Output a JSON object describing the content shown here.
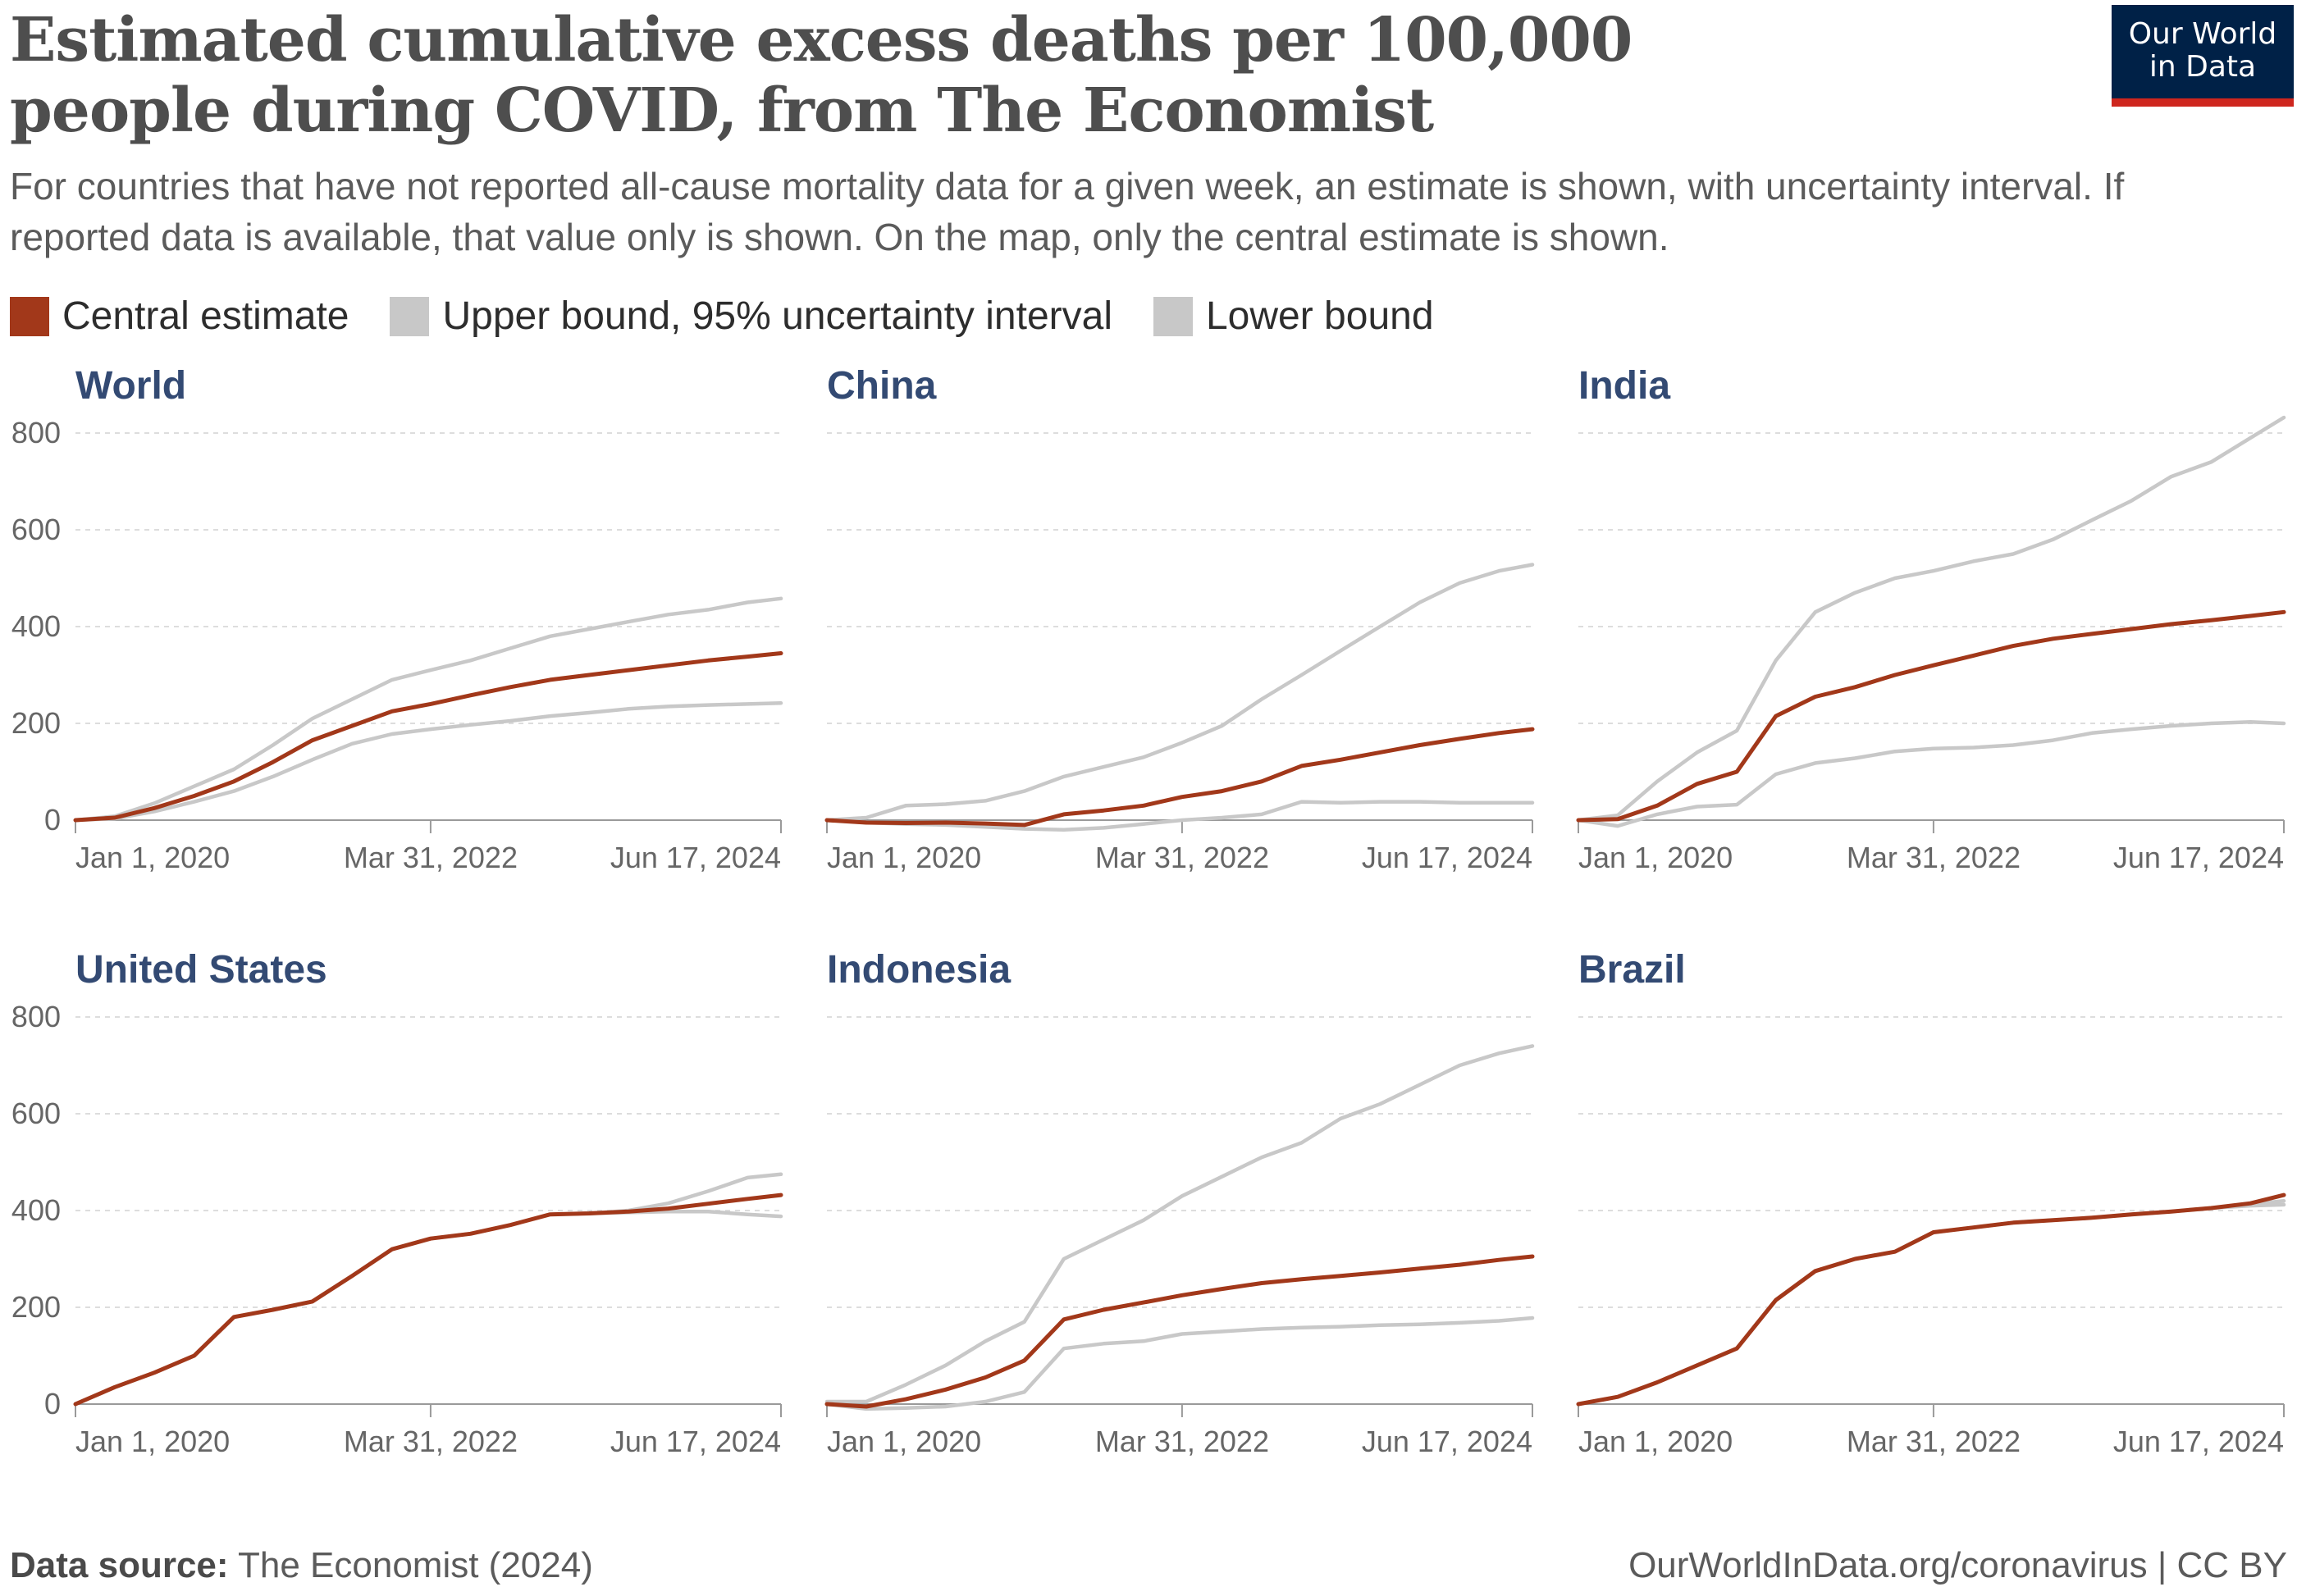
{
  "title": "Estimated cumulative excess deaths per 100,000 people during COVID, from The Economist",
  "subtitle": "For countries that have not reported all-cause mortality data for a given week, an estimate is shown, with uncertainty interval. If reported data is available, that value only is shown. On the map, only the central estimate is shown.",
  "logo": {
    "line1": "Our World",
    "line2": "in Data"
  },
  "legend": [
    {
      "label": "Central estimate",
      "color": "#a2381a"
    },
    {
      "label": "Upper bound, 95% uncertainty interval",
      "color": "#c8c8c8"
    },
    {
      "label": "Lower bound",
      "color": "#c8c8c8"
    }
  ],
  "footer": {
    "source_label": "Data source:",
    "source_text": "The Economist (2024)",
    "credit": "OurWorldInData.org/coronavirus | CC BY"
  },
  "colors": {
    "central": "#a2381a",
    "bounds": "#c8c8c8",
    "grid": "#dddddd",
    "title": "#334a73"
  },
  "chart_data": [
    {
      "type": "line",
      "title": "World",
      "x_ticks": [
        "Jan 1, 2020",
        "Mar 31, 2022",
        "Jun 17, 2024"
      ],
      "ylim": [
        0,
        800
      ],
      "y_ticks": [
        0,
        200,
        400,
        600,
        800
      ],
      "x": [
        "2020-01-01",
        "2020-04-01",
        "2020-07-01",
        "2020-10-01",
        "2021-01-01",
        "2021-04-01",
        "2021-07-01",
        "2021-10-01",
        "2022-01-01",
        "2022-03-31",
        "2022-07-01",
        "2022-10-01",
        "2023-01-01",
        "2023-04-01",
        "2023-07-01",
        "2023-10-01",
        "2024-01-01",
        "2024-04-01",
        "2024-06-17"
      ],
      "series": [
        {
          "name": "Central estimate",
          "values": [
            0,
            5,
            25,
            50,
            80,
            120,
            165,
            195,
            225,
            240,
            258,
            275,
            290,
            300,
            310,
            320,
            330,
            338,
            345
          ]
        },
        {
          "name": "Upper bound, 95% uncertainty interval",
          "values": [
            0,
            8,
            35,
            70,
            105,
            155,
            210,
            250,
            290,
            310,
            330,
            355,
            380,
            395,
            410,
            425,
            435,
            450,
            458
          ]
        },
        {
          "name": "Lower bound",
          "values": [
            0,
            3,
            18,
            38,
            60,
            90,
            125,
            158,
            178,
            188,
            197,
            205,
            215,
            222,
            230,
            235,
            238,
            240,
            242
          ]
        }
      ]
    },
    {
      "type": "line",
      "title": "China",
      "x_ticks": [
        "Jan 1, 2020",
        "Mar 31, 2022",
        "Jun 17, 2024"
      ],
      "ylim": [
        0,
        800
      ],
      "y_ticks": [
        0,
        200,
        400,
        600,
        800
      ],
      "x": [
        "2020-01-01",
        "2020-04-01",
        "2020-07-01",
        "2020-10-01",
        "2021-01-01",
        "2021-04-01",
        "2021-07-01",
        "2021-10-01",
        "2022-01-01",
        "2022-03-31",
        "2022-07-01",
        "2022-10-01",
        "2023-01-01",
        "2023-04-01",
        "2023-07-01",
        "2023-10-01",
        "2024-01-01",
        "2024-04-01",
        "2024-06-17"
      ],
      "series": [
        {
          "name": "Central estimate",
          "values": [
            0,
            -5,
            -6,
            -5,
            -7,
            -10,
            12,
            20,
            30,
            48,
            60,
            80,
            112,
            125,
            140,
            155,
            168,
            180,
            188
          ]
        },
        {
          "name": "Upper bound, 95% uncertainty interval",
          "values": [
            0,
            5,
            30,
            33,
            40,
            60,
            90,
            110,
            130,
            160,
            195,
            250,
            300,
            350,
            400,
            450,
            490,
            515,
            528
          ]
        },
        {
          "name": "Lower bound",
          "values": [
            0,
            -5,
            -8,
            -10,
            -14,
            -18,
            -20,
            -16,
            -8,
            0,
            5,
            12,
            38,
            36,
            38,
            38,
            36,
            36,
            36
          ]
        }
      ]
    },
    {
      "type": "line",
      "title": "India",
      "x_ticks": [
        "Jan 1, 2020",
        "Mar 31, 2022",
        "Jun 17, 2024"
      ],
      "ylim": [
        0,
        800
      ],
      "y_ticks": [
        0,
        200,
        400,
        600,
        800
      ],
      "x": [
        "2020-01-01",
        "2020-04-01",
        "2020-07-01",
        "2020-10-01",
        "2021-01-01",
        "2021-04-01",
        "2021-07-01",
        "2021-10-01",
        "2022-01-01",
        "2022-03-31",
        "2022-07-01",
        "2022-10-01",
        "2023-01-01",
        "2023-04-01",
        "2023-07-01",
        "2023-10-01",
        "2024-01-01",
        "2024-04-01",
        "2024-06-17"
      ],
      "series": [
        {
          "name": "Central estimate",
          "values": [
            0,
            2,
            30,
            75,
            100,
            215,
            255,
            275,
            300,
            320,
            340,
            360,
            375,
            385,
            395,
            405,
            413,
            422,
            430
          ]
        },
        {
          "name": "Upper bound, 95% uncertainty interval",
          "values": [
            0,
            10,
            80,
            140,
            185,
            330,
            430,
            470,
            500,
            515,
            535,
            550,
            580,
            620,
            660,
            710,
            740,
            790,
            832
          ]
        },
        {
          "name": "Lower bound",
          "values": [
            0,
            -12,
            12,
            28,
            32,
            95,
            118,
            128,
            142,
            148,
            150,
            155,
            165,
            180,
            188,
            195,
            200,
            203,
            200
          ]
        }
      ]
    },
    {
      "type": "line",
      "title": "United States",
      "x_ticks": [
        "Jan 1, 2020",
        "Mar 31, 2022",
        "Jun 17, 2024"
      ],
      "ylim": [
        0,
        800
      ],
      "y_ticks": [
        0,
        200,
        400,
        600,
        800
      ],
      "x": [
        "2020-01-01",
        "2020-04-01",
        "2020-07-01",
        "2020-10-01",
        "2021-01-01",
        "2021-04-01",
        "2021-07-01",
        "2021-10-01",
        "2022-01-01",
        "2022-03-31",
        "2022-07-01",
        "2022-10-01",
        "2023-01-01",
        "2023-04-01",
        "2023-07-01",
        "2023-10-01",
        "2024-01-01",
        "2024-04-01",
        "2024-06-17"
      ],
      "series": [
        {
          "name": "Central estimate",
          "values": [
            0,
            35,
            65,
            100,
            180,
            195,
            212,
            265,
            320,
            342,
            352,
            370,
            392,
            394,
            398,
            404,
            414,
            424,
            432
          ]
        },
        {
          "name": "Upper bound, 95% uncertainty interval",
          "values": [
            0,
            35,
            65,
            100,
            180,
            195,
            212,
            265,
            320,
            342,
            352,
            370,
            392,
            394,
            400,
            415,
            440,
            468,
            475
          ]
        },
        {
          "name": "Lower bound",
          "values": [
            0,
            35,
            65,
            100,
            180,
            195,
            212,
            265,
            320,
            342,
            352,
            370,
            392,
            394,
            396,
            398,
            398,
            392,
            388
          ]
        }
      ]
    },
    {
      "type": "line",
      "title": "Indonesia",
      "x_ticks": [
        "Jan 1, 2020",
        "Mar 31, 2022",
        "Jun 17, 2024"
      ],
      "ylim": [
        0,
        800
      ],
      "y_ticks": [
        0,
        200,
        400,
        600,
        800
      ],
      "x": [
        "2020-01-01",
        "2020-04-01",
        "2020-07-01",
        "2020-10-01",
        "2021-01-01",
        "2021-04-01",
        "2021-07-01",
        "2021-10-01",
        "2022-01-01",
        "2022-03-31",
        "2022-07-01",
        "2022-10-01",
        "2023-01-01",
        "2023-04-01",
        "2023-07-01",
        "2023-10-01",
        "2024-01-01",
        "2024-04-01",
        "2024-06-17"
      ],
      "series": [
        {
          "name": "Central estimate",
          "values": [
            0,
            -5,
            10,
            30,
            55,
            90,
            175,
            195,
            210,
            225,
            238,
            250,
            258,
            265,
            272,
            280,
            288,
            298,
            305
          ]
        },
        {
          "name": "Upper bound, 95% uncertainty interval",
          "values": [
            5,
            5,
            40,
            80,
            130,
            170,
            300,
            340,
            380,
            430,
            470,
            510,
            540,
            590,
            620,
            660,
            700,
            725,
            740
          ]
        },
        {
          "name": "Lower bound",
          "values": [
            0,
            -10,
            -8,
            -5,
            5,
            25,
            115,
            125,
            130,
            145,
            150,
            155,
            158,
            160,
            163,
            165,
            168,
            172,
            178
          ]
        }
      ]
    },
    {
      "type": "line",
      "title": "Brazil",
      "x_ticks": [
        "Jan 1, 2020",
        "Mar 31, 2022",
        "Jun 17, 2024"
      ],
      "ylim": [
        0,
        800
      ],
      "y_ticks": [
        0,
        200,
        400,
        600,
        800
      ],
      "x": [
        "2020-01-01",
        "2020-04-01",
        "2020-07-01",
        "2020-10-01",
        "2021-01-01",
        "2021-04-01",
        "2021-07-01",
        "2021-10-01",
        "2022-01-01",
        "2022-03-31",
        "2022-07-01",
        "2022-10-01",
        "2023-01-01",
        "2023-04-01",
        "2023-07-01",
        "2023-10-01",
        "2024-01-01",
        "2024-04-01",
        "2024-06-17"
      ],
      "series": [
        {
          "name": "Central estimate",
          "values": [
            0,
            15,
            45,
            80,
            115,
            215,
            275,
            300,
            315,
            355,
            365,
            375,
            380,
            385,
            392,
            398,
            405,
            415,
            432
          ]
        },
        {
          "name": "Upper bound, 95% uncertainty interval",
          "values": [
            0,
            15,
            45,
            80,
            115,
            215,
            275,
            300,
            315,
            355,
            365,
            375,
            380,
            385,
            392,
            398,
            405,
            413,
            420
          ]
        },
        {
          "name": "Lower bound",
          "values": [
            0,
            15,
            45,
            80,
            115,
            215,
            275,
            300,
            315,
            355,
            365,
            375,
            380,
            385,
            392,
            398,
            405,
            410,
            412
          ]
        }
      ]
    }
  ]
}
